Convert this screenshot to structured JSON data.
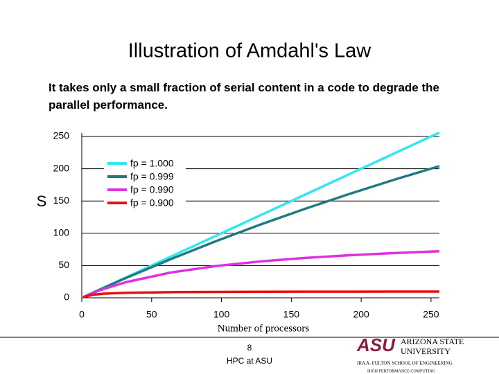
{
  "chart_data": {
    "type": "line",
    "title": "Illustration of Amdahl's Law",
    "subtitle": "It takes only a small fraction of serial content in a code to degrade the parallel performance.",
    "y_label": "S",
    "x_label": "Number of processors",
    "x": [
      1,
      8,
      16,
      32,
      64,
      96,
      128,
      160,
      192,
      224,
      256
    ],
    "series": [
      {
        "name": "fp = 1.000",
        "color": "#33e6f0",
        "values": [
          1,
          8,
          16,
          32,
          64,
          96,
          128,
          160,
          192,
          224,
          256
        ]
      },
      {
        "name": "fp = 0.999",
        "color": "#1f7a80",
        "values": [
          1,
          7.94,
          15.76,
          31.04,
          60.2,
          87.7,
          113.6,
          138.0,
          161.2,
          183.2,
          204.0
        ]
      },
      {
        "name": "fp = 0.990",
        "color": "#e030e0",
        "values": [
          1,
          7.48,
          13.91,
          24.43,
          39.26,
          49.23,
          56.39,
          61.78,
          65.98,
          69.35,
          72.11
        ]
      },
      {
        "name": "fp = 0.900",
        "color": "#e81010",
        "values": [
          1,
          4.71,
          6.4,
          7.8,
          8.77,
          9.14,
          9.34,
          9.47,
          9.55,
          9.61,
          9.66
        ]
      }
    ],
    "xlim": [
      0,
      256
    ],
    "xticks": [
      0,
      50,
      100,
      150,
      200,
      250
    ],
    "ylim": [
      0,
      250
    ],
    "yticks": [
      0,
      50,
      100,
      150,
      200,
      250
    ],
    "grid": true,
    "legend": "upper-left"
  },
  "footer": {
    "page": "8",
    "text": "HPC at ASU",
    "logo": [
      "ASU",
      "ARIZONA STATE",
      "UNIVERSITY",
      "IRA A. FULTON SCHOOL OF ENGINEERING",
      "HIGH PERFORMANCE COMPUTING"
    ]
  }
}
